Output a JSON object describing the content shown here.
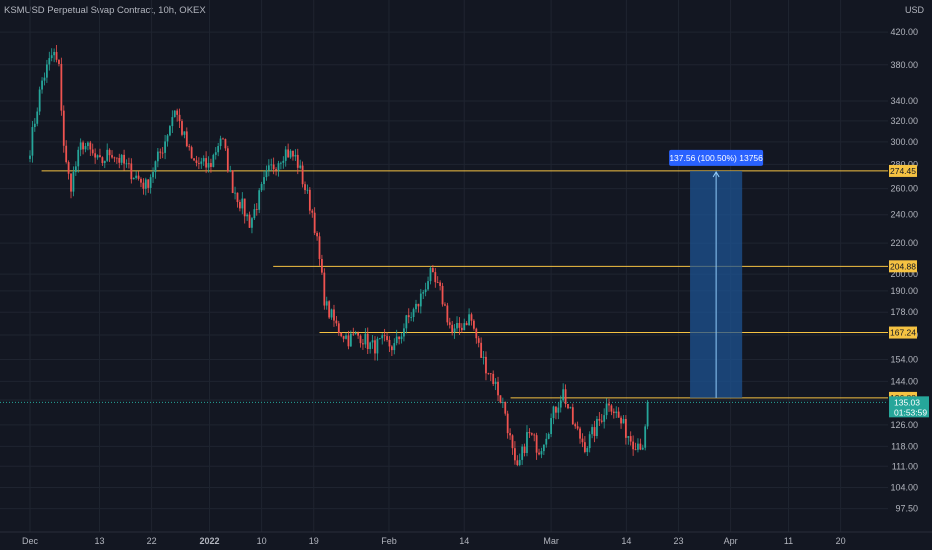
{
  "header": {
    "title": "KSMUSD Perpetual Swap Contract, 10h, OKEX",
    "currency": "USD"
  },
  "colors": {
    "background": "#131722",
    "grid": "#1f2430",
    "up": "#26a69a",
    "down": "#ef5350",
    "level_line": "#f5c242",
    "price_line": "#26a69a",
    "measure_fill": "#1e5391",
    "measure_label": "#2962ff"
  },
  "chart_data": {
    "type": "candlestick",
    "y_scale": "log",
    "ylim": [
      93,
      455
    ],
    "y_ticks": [
      420.0,
      380.0,
      340.0,
      320.0,
      300.0,
      280.0,
      260.0,
      240.0,
      220.0,
      200.0,
      190.0,
      178.0,
      166.0,
      154.0,
      144.0,
      136.0,
      126.0,
      118.0,
      111.0,
      104.0,
      97.5
    ],
    "y_tick_labels": [
      "420.00",
      "380.00",
      "340.00",
      "320.00",
      "300.00",
      "280.00",
      "260.00",
      "240.00",
      "220.00",
      "200.00",
      "190.00",
      "178.00",
      "166.00",
      "154.00",
      "144.00",
      "136.00",
      "126.00",
      "118.00",
      "111.00",
      "104.00",
      "97.50"
    ],
    "x_ticks": [
      "Dec",
      "13",
      "22",
      "2022",
      "10",
      "19",
      "Feb",
      "14",
      "Mar",
      "14",
      "23",
      "Apr",
      "11",
      "20"
    ],
    "price_path": [
      [
        "Dec 1",
        295
      ],
      [
        "Dec 3",
        360
      ],
      [
        "Dec 5",
        395
      ],
      [
        "Dec 6",
        375
      ],
      [
        "Dec 7",
        285
      ],
      [
        "Dec 8",
        262
      ],
      [
        "Dec 10",
        300
      ],
      [
        "Dec 13",
        280
      ],
      [
        "Dec 15",
        292
      ],
      [
        "Dec 18",
        276
      ],
      [
        "Dec 21",
        262
      ],
      [
        "Dec 24",
        296
      ],
      [
        "Dec 26",
        333
      ],
      [
        "Dec 29",
        282
      ],
      [
        "Jan 1",
        278
      ],
      [
        "Jan 3",
        306
      ],
      [
        "Jan 5",
        262
      ],
      [
        "Jan 8",
        234
      ],
      [
        "Jan 11",
        272
      ],
      [
        "Jan 14",
        292
      ],
      [
        "Jan 16",
        285
      ],
      [
        "Jan 19",
        238
      ],
      [
        "Jan 21",
        182
      ],
      [
        "Jan 23",
        170
      ],
      [
        "Jan 25",
        164
      ],
      [
        "Jan 27",
        166
      ],
      [
        "Jan 29",
        160
      ],
      [
        "Jan 31",
        162
      ],
      [
        "Feb 2",
        160
      ],
      [
        "Feb 4",
        173
      ],
      [
        "Feb 6",
        182
      ],
      [
        "Feb 8",
        200
      ],
      [
        "Feb 10",
        188
      ],
      [
        "Feb 12",
        166
      ],
      [
        "Feb 15",
        176
      ],
      [
        "Feb 17",
        155
      ],
      [
        "Feb 19",
        145
      ],
      [
        "Feb 21",
        132
      ],
      [
        "Feb 23",
        108
      ],
      [
        "Feb 25",
        123
      ],
      [
        "Feb 27",
        117
      ],
      [
        "Mar 1",
        128
      ],
      [
        "Mar 3",
        140
      ],
      [
        "Mar 5",
        125
      ],
      [
        "Mar 7",
        118
      ],
      [
        "Mar 9",
        126
      ],
      [
        "Mar 11",
        136
      ],
      [
        "Mar 13",
        127
      ],
      [
        "Mar 15",
        120
      ],
      [
        "Mar 17",
        119
      ],
      [
        "Mar 18",
        135.03
      ]
    ],
    "horizontal_levels": [
      {
        "value": 274.45,
        "label": "274.45",
        "from": "Dec 3"
      },
      {
        "value": 204.88,
        "label": "204.88",
        "from": "Jan 12"
      },
      {
        "value": 167.24,
        "label": "167.24",
        "from": "Jan 20"
      },
      {
        "value": 136.88,
        "label": "136.88",
        "from": "Feb 22"
      }
    ],
    "last_price": {
      "value": 135.03,
      "label": "135.03",
      "countdown": "01:53:59"
    },
    "measure": {
      "from": 136.88,
      "to": 274.45,
      "x_start": "Mar 25",
      "x_end": "Apr 3",
      "label": "137.56 (100.50%) 13756"
    }
  }
}
